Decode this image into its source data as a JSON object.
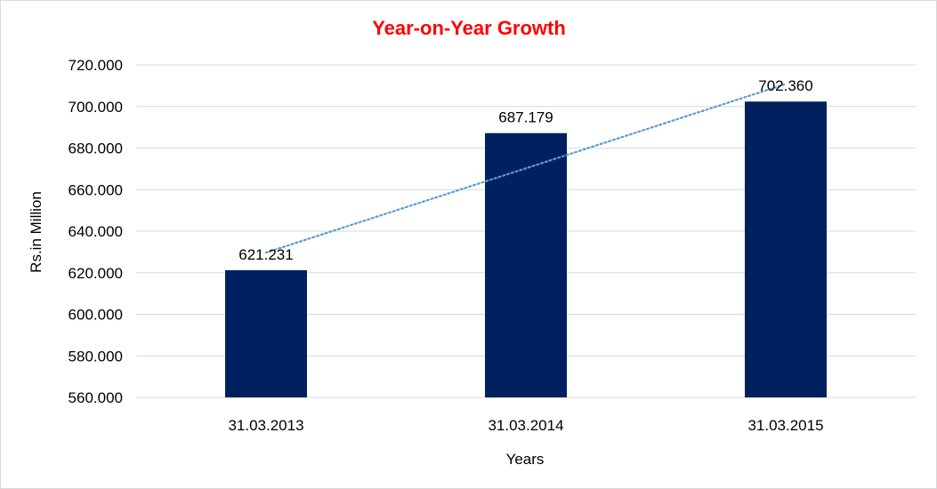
{
  "chart_data": {
    "type": "bar",
    "title": "Year-on-Year Growth",
    "xlabel": "Years",
    "ylabel": "Rs.in Million",
    "categories": [
      "31.03.2013",
      "31.03.2014",
      "31.03.2015"
    ],
    "values": [
      621.231,
      687.179,
      702.36
    ],
    "data_labels": [
      "621.231",
      "687.179",
      "702.360"
    ],
    "ylim": [
      560,
      720
    ],
    "yticks": [
      560,
      580,
      600,
      620,
      640,
      660,
      680,
      700,
      720
    ],
    "ytick_labels": [
      "560.000",
      "580.000",
      "600.000",
      "620.000",
      "640.000",
      "660.000",
      "680.000",
      "700.000",
      "720.000"
    ],
    "trendline": {
      "type": "linear",
      "style": "dotted"
    },
    "grid": true,
    "legend": "none",
    "colors": {
      "bar": "#002060",
      "title": "#ff0000",
      "trendline": "#5b9bd5",
      "grid": "#d9d9d9"
    }
  }
}
